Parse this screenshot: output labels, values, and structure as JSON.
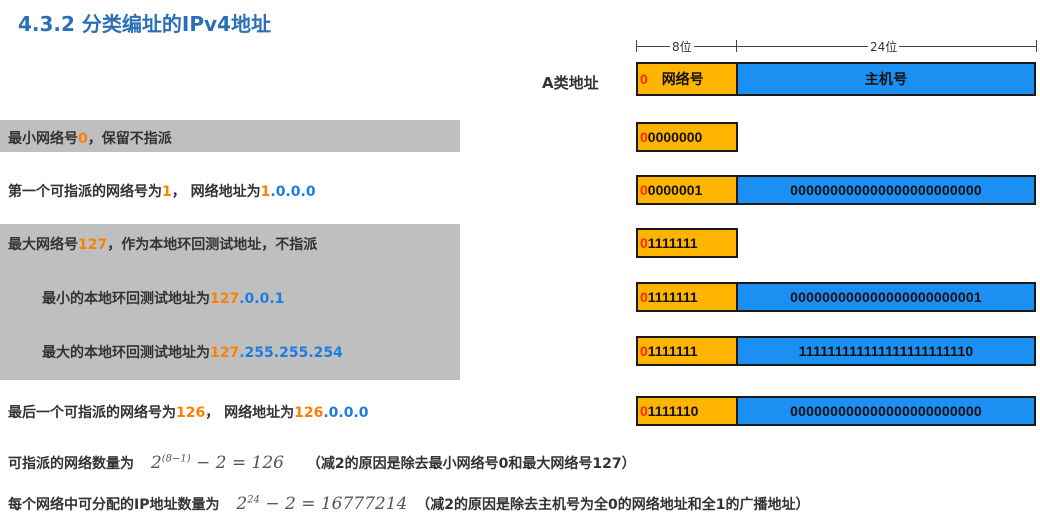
{
  "title": "4.3.2 分类编址的IPv4地址",
  "header": {
    "class_label": "A类地址",
    "bits_net": "8位",
    "bits_host": "24位",
    "lead_bit": "0",
    "net_label": "网络号",
    "host_label": "主机号"
  },
  "rows": [
    {
      "text_a": "最小网络号",
      "hl": "0",
      "text_b": "，保留不指派",
      "lead": "0",
      "net": "0000000",
      "host": ""
    },
    {
      "text_a": "第一个可指派的网络号为",
      "hl": "1",
      "text_b": "， 网络地址为",
      "ip_a": "1",
      "ip_b": ".0.0.0",
      "lead": "0",
      "net": "0000001",
      "host": "000000000000000000000000"
    },
    {
      "text_a": "最大网络号",
      "hl": "127",
      "text_b": "，作为本地环回测试地址，不指派",
      "lead": "0",
      "net": "1111111",
      "host": ""
    },
    {
      "text_a": "最小的本地环回测试地址为",
      "ip_a": "127",
      "ip_b": ".0.0.1",
      "lead": "0",
      "net": "1111111",
      "host": "000000000000000000000001"
    },
    {
      "text_a": "最大的本地环回测试地址为",
      "ip_a": "127",
      "ip_b": ".255.255.254",
      "lead": "0",
      "net": "1111111",
      "host": "111111111111111111111110"
    },
    {
      "text_a": "最后一个可指派的网络号为",
      "hl": "126",
      "text_b": "， 网络地址为",
      "ip_a": "126",
      "ip_b": ".0.0.0",
      "lead": "0",
      "net": "1111110",
      "host": "000000000000000000000000"
    }
  ],
  "formulas": {
    "f1_label": "可指派的网络数量为",
    "f1_base": "2",
    "f1_exp": "(8−1)",
    "f1_rest": "− 2 = 126",
    "f1_note": "（减2的原因是除去最小网络号0和最大网络号127）",
    "f2_label": "每个网络中可分配的IP地址数量为",
    "f2_base": "2",
    "f2_exp": "24",
    "f2_rest": "− 2 = 16777214",
    "f2_note": "（减2的原因是除去主机号为全0的网络地址和全1的广播地址）"
  }
}
